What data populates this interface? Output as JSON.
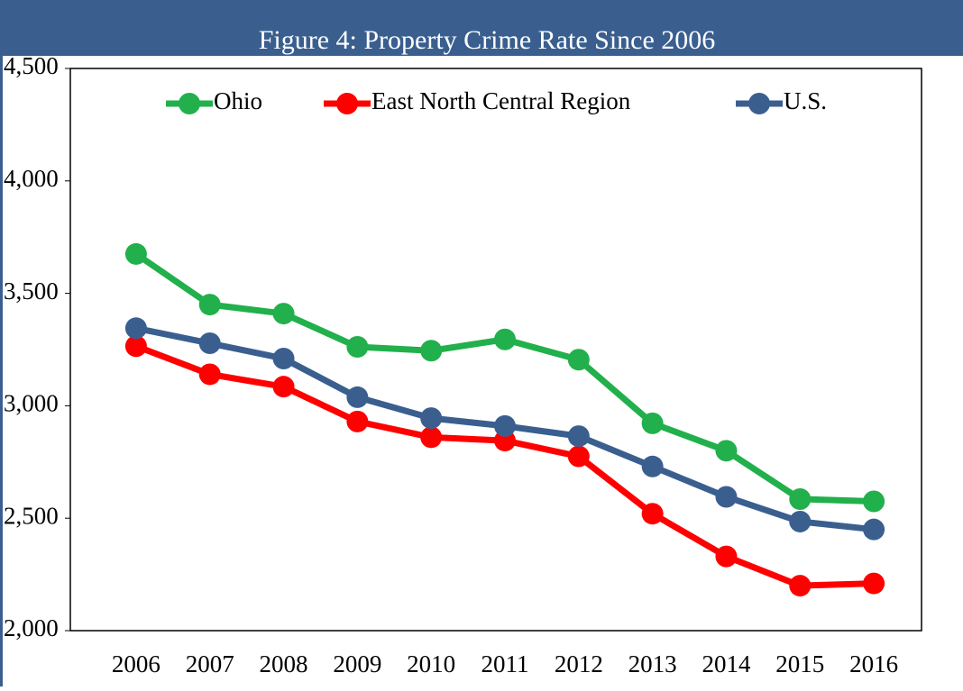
{
  "chart_data": {
    "type": "line",
    "title": "Figure 4: Property Crime Rate Since 2006",
    "categories": [
      "2006",
      "2007",
      "2008",
      "2009",
      "2010",
      "2011",
      "2012",
      "2013",
      "2014",
      "2015",
      "2016"
    ],
    "series": [
      {
        "name": "Ohio",
        "color": "#21b04b",
        "values": [
          3675,
          3450,
          3410,
          3262,
          3245,
          3295,
          3205,
          2922,
          2800,
          2585,
          2575
        ]
      },
      {
        "name": "East North Central Region",
        "color": "#ff0000",
        "values": [
          3265,
          3140,
          3085,
          2930,
          2860,
          2845,
          2775,
          2520,
          2330,
          2200,
          2210
        ]
      },
      {
        "name": "U.S.",
        "color": "#3a5f8f",
        "values": [
          3345,
          3278,
          3210,
          3038,
          2945,
          2910,
          2865,
          2730,
          2595,
          2485,
          2450
        ]
      }
    ],
    "ylim": [
      2000,
      4500
    ],
    "yticks": [
      {
        "value": 2000,
        "label": "2,000"
      },
      {
        "value": 2500,
        "label": "2,500"
      },
      {
        "value": 3000,
        "label": "3,000"
      },
      {
        "value": 3500,
        "label": "3,500"
      },
      {
        "value": 4000,
        "label": "4,000"
      },
      {
        "value": 4500,
        "label": "4,500"
      }
    ],
    "legend": "top"
  }
}
